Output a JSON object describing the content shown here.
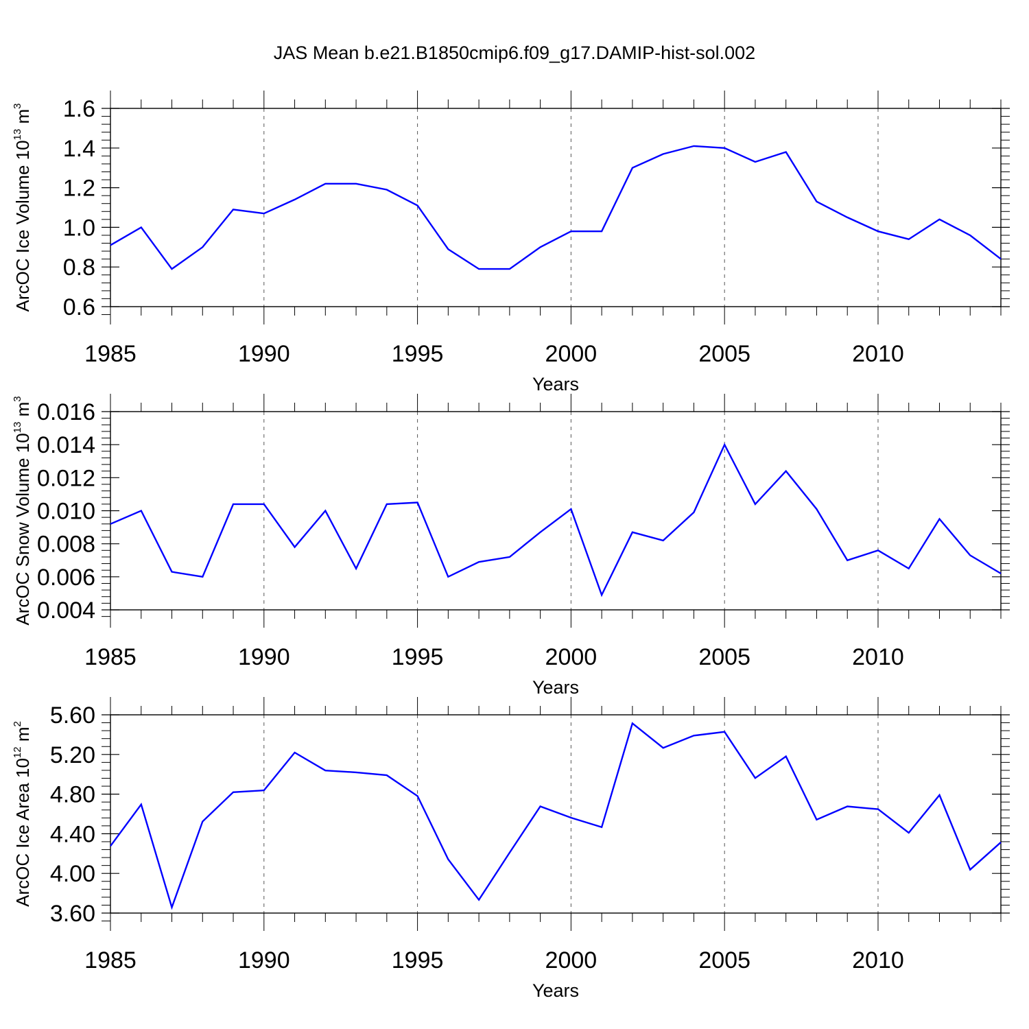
{
  "title": "JAS Mean b.e21.B1850cmip6.f09_g17.DAMIP-hist-sol.002",
  "colors": {
    "line": "#0000ff",
    "axis": "#000000",
    "grid": "#555555"
  },
  "chart_data": [
    {
      "type": "line",
      "title": "",
      "xlabel": "Years",
      "ylabel": "ArcOC Ice Volume 10",
      "ylabel_exp": "13",
      "ylabel_unit": " m",
      "ylabel_unit_exp": "3",
      "xlim": [
        1985,
        2014
      ],
      "ylim": [
        0.6,
        1.6
      ],
      "yticks": [
        "0.6",
        "0.8",
        "1.0",
        "1.2",
        "1.4",
        "1.6"
      ],
      "xticks": [
        "1985",
        "1990",
        "1995",
        "2000",
        "2005",
        "2010"
      ],
      "x": [
        1985,
        1986,
        1987,
        1988,
        1989,
        1990,
        1991,
        1992,
        1993,
        1994,
        1995,
        1996,
        1997,
        1998,
        1999,
        2000,
        2001,
        2002,
        2003,
        2004,
        2005,
        2006,
        2007,
        2008,
        2009,
        2010,
        2011,
        2012,
        2013,
        2014
      ],
      "series": [
        {
          "name": "ArcOC Ice Volume",
          "values": [
            0.91,
            1.0,
            0.79,
            0.9,
            1.09,
            1.07,
            1.14,
            1.22,
            1.22,
            1.19,
            1.11,
            0.89,
            0.79,
            0.79,
            0.9,
            0.98,
            0.98,
            1.3,
            1.37,
            1.41,
            1.4,
            1.33,
            1.38,
            1.13,
            1.05,
            0.98,
            0.94,
            1.04,
            0.96,
            0.84
          ]
        }
      ]
    },
    {
      "type": "line",
      "title": "",
      "xlabel": "Years",
      "ylabel": "ArcOC Snow Volume 10",
      "ylabel_exp": "13",
      "ylabel_unit": " m",
      "ylabel_unit_exp": "3",
      "xlim": [
        1985,
        2014
      ],
      "ylim": [
        0.004,
        0.016
      ],
      "yticks": [
        "0.004",
        "0.006",
        "0.008",
        "0.010",
        "0.012",
        "0.014",
        "0.016"
      ],
      "xticks": [
        "1985",
        "1990",
        "1995",
        "2000",
        "2005",
        "2010"
      ],
      "x": [
        1985,
        1986,
        1987,
        1988,
        1989,
        1990,
        1991,
        1992,
        1993,
        1994,
        1995,
        1996,
        1997,
        1998,
        1999,
        2000,
        2001,
        2002,
        2003,
        2004,
        2005,
        2006,
        2007,
        2008,
        2009,
        2010,
        2011,
        2012,
        2013,
        2014
      ],
      "series": [
        {
          "name": "ArcOC Snow Volume",
          "values": [
            0.0092,
            0.01,
            0.0063,
            0.006,
            0.0104,
            0.0104,
            0.0078,
            0.01,
            0.0065,
            0.0104,
            0.0105,
            0.006,
            0.0069,
            0.0072,
            0.0087,
            0.0101,
            0.0049,
            0.0087,
            0.0082,
            0.0099,
            0.014,
            0.0104,
            0.0124,
            0.0101,
            0.007,
            0.0076,
            0.0065,
            0.0095,
            0.0073,
            0.0062
          ]
        }
      ]
    },
    {
      "type": "line",
      "title": "",
      "xlabel": "Years",
      "ylabel": "ArcOC Ice Area 10",
      "ylabel_exp": "12",
      "ylabel_unit": " m",
      "ylabel_unit_exp": "2",
      "xlim": [
        1985,
        2014
      ],
      "ylim": [
        3.6,
        5.7
      ],
      "yticks": [
        "3.60",
        "4.00",
        "4.40",
        "4.80",
        "5.20",
        "5.60"
      ],
      "xticks": [
        "1985",
        "1990",
        "1995",
        "2000",
        "2005",
        "2010"
      ],
      "x": [
        1985,
        1986,
        1987,
        1988,
        1989,
        1990,
        1991,
        1992,
        1993,
        1994,
        1995,
        1996,
        1997,
        1998,
        1999,
        2000,
        2001,
        2002,
        2003,
        2004,
        2005,
        2006,
        2007,
        2008,
        2009,
        2010,
        2011,
        2012,
        2013,
        2014
      ],
      "series": [
        {
          "name": "ArcOC Ice Area",
          "values": [
            4.31,
            4.75,
            3.66,
            4.57,
            4.88,
            4.9,
            5.3,
            5.11,
            5.09,
            5.06,
            4.84,
            4.17,
            3.74,
            4.24,
            4.73,
            4.61,
            4.51,
            5.61,
            5.35,
            5.48,
            5.52,
            5.03,
            5.26,
            4.59,
            4.73,
            4.7,
            4.45,
            4.85,
            4.06,
            4.35
          ]
        }
      ]
    }
  ]
}
